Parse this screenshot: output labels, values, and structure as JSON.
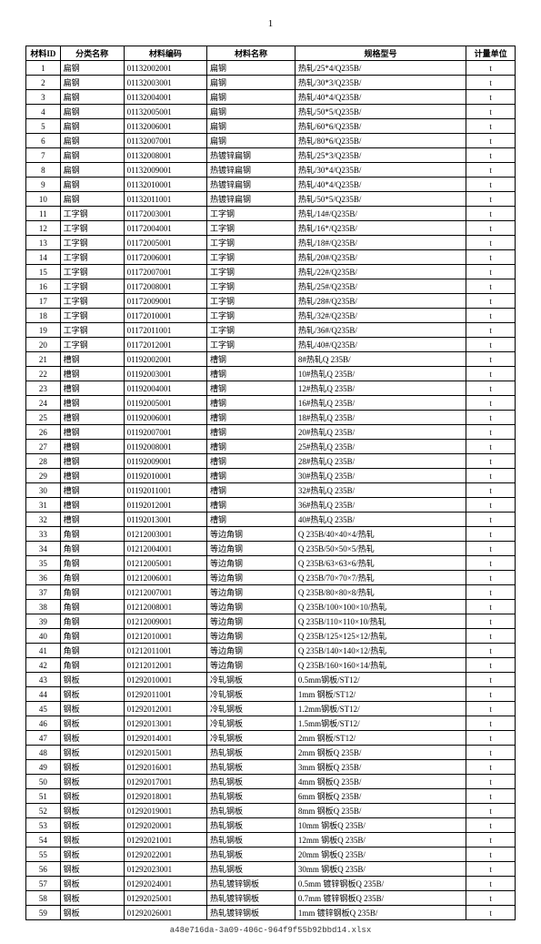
{
  "page_number": "1",
  "footer": "a48e716da-3a09-406c-964f9f55b92bbd14.xlsx",
  "columns": [
    "材料ID",
    "分类名称",
    "材料编码",
    "材料名称",
    "规格型号",
    "计量单位"
  ],
  "rows": [
    [
      "1",
      "扁钢",
      "01132002001",
      "扁钢",
      "热轧/25*4/Q235B/",
      "t"
    ],
    [
      "2",
      "扁钢",
      "01132003001",
      "扁钢",
      "热轧/30*3/Q235B/",
      "t"
    ],
    [
      "3",
      "扁钢",
      "01132004001",
      "扁钢",
      "热轧/40*4/Q235B/",
      "t"
    ],
    [
      "4",
      "扁钢",
      "01132005001",
      "扁钢",
      "热轧/50*5/Q235B/",
      "t"
    ],
    [
      "5",
      "扁钢",
      "01132006001",
      "扁钢",
      "热轧/60*6/Q235B/",
      "t"
    ],
    [
      "6",
      "扁钢",
      "01132007001",
      "扁钢",
      "热轧/80*6/Q235B/",
      "t"
    ],
    [
      "7",
      "扁钢",
      "01132008001",
      "热镀锌扁钢",
      "热轧/25*3/Q235B/",
      "t"
    ],
    [
      "8",
      "扁钢",
      "01132009001",
      "热镀锌扁钢",
      "热轧/30*4/Q235B/",
      "t"
    ],
    [
      "9",
      "扁钢",
      "01132010001",
      "热镀锌扁钢",
      "热轧/40*4/Q235B/",
      "t"
    ],
    [
      "10",
      "扁钢",
      "01132011001",
      "热镀锌扁钢",
      "热轧/50*5/Q235B/",
      "t"
    ],
    [
      "11",
      "工字钢",
      "01172003001",
      "工字钢",
      "热轧/14#/Q235B/",
      "t"
    ],
    [
      "12",
      "工字钢",
      "01172004001",
      "工字钢",
      "热轧/16*/Q235B/",
      "t"
    ],
    [
      "13",
      "工字钢",
      "01172005001",
      "工字钢",
      "热轧/18#/Q235B/",
      "t"
    ],
    [
      "14",
      "工字钢",
      "01172006001",
      "工字钢",
      "热轧/20#/Q235B/",
      "t"
    ],
    [
      "15",
      "工字钢",
      "01172007001",
      "工字钢",
      "热轧/22#/Q235B/",
      "t"
    ],
    [
      "16",
      "工字钢",
      "01172008001",
      "工字钢",
      "热轧/25#/Q235B/",
      "t"
    ],
    [
      "17",
      "工字钢",
      "01172009001",
      "工字钢",
      "热轧/28#/Q235B/",
      "t"
    ],
    [
      "18",
      "工字钢",
      "01172010001",
      "工字钢",
      "热轧/32#/Q235B/",
      "t"
    ],
    [
      "19",
      "工字钢",
      "01172011001",
      "工字钢",
      "热轧/36#/Q235B/",
      "t"
    ],
    [
      "20",
      "工字钢",
      "01172012001",
      "工字钢",
      "热轧/40#/Q235B/",
      "t"
    ],
    [
      "21",
      "槽钢",
      "01192002001",
      "槽钢",
      "8#热轧Q 235B/",
      "t"
    ],
    [
      "22",
      "槽钢",
      "01192003001",
      "槽钢",
      "10#热轧Q 235B/",
      "t"
    ],
    [
      "23",
      "槽钢",
      "01192004001",
      "槽钢",
      "12#热轧Q 235B/",
      "t"
    ],
    [
      "24",
      "槽钢",
      "01192005001",
      "槽钢",
      "16#热轧Q 235B/",
      "t"
    ],
    [
      "25",
      "槽钢",
      "01192006001",
      "槽钢",
      "18#热轧Q 235B/",
      "t"
    ],
    [
      "26",
      "槽钢",
      "01192007001",
      "槽钢",
      "20#热轧Q 235B/",
      "t"
    ],
    [
      "27",
      "槽钢",
      "01192008001",
      "槽钢",
      "25#热轧Q 235B/",
      "t"
    ],
    [
      "28",
      "槽钢",
      "01192009001",
      "槽钢",
      "28#热轧Q 235B/",
      "t"
    ],
    [
      "29",
      "槽钢",
      "01192010001",
      "槽钢",
      "30#热轧Q 235B/",
      "t"
    ],
    [
      "30",
      "槽钢",
      "01192011001",
      "槽钢",
      "32#热轧Q 235B/",
      "t"
    ],
    [
      "31",
      "槽钢",
      "01192012001",
      "槽钢",
      "36#热轧Q 235B/",
      "t"
    ],
    [
      "32",
      "槽钢",
      "01192013001",
      "槽钢",
      "40#热轧Q 235B/",
      "t"
    ],
    [
      "33",
      "角钢",
      "01212003001",
      "等边角钢",
      "Q 235B/40×40×4/热轧",
      "t"
    ],
    [
      "34",
      "角钢",
      "01212004001",
      "等边角钢",
      "Q 235B/50×50×5/热轧",
      "t"
    ],
    [
      "35",
      "角钢",
      "01212005001",
      "等边角钢",
      "Q 235B/63×63×6/热轧",
      "t"
    ],
    [
      "36",
      "角钢",
      "01212006001",
      "等边角钢",
      "Q 235B/70×70×7/热轧",
      "t"
    ],
    [
      "37",
      "角钢",
      "01212007001",
      "等边角钢",
      "Q 235B/80×80×8/热轧",
      "t"
    ],
    [
      "38",
      "角钢",
      "01212008001",
      "等边角钢",
      "Q 235B/100×100×10/热轧",
      "t"
    ],
    [
      "39",
      "角钢",
      "01212009001",
      "等边角钢",
      "Q 235B/110×110×10/热轧",
      "t"
    ],
    [
      "40",
      "角钢",
      "01212010001",
      "等边角钢",
      "Q 235B/125×125×12/热轧",
      "t"
    ],
    [
      "41",
      "角钢",
      "01212011001",
      "等边角钢",
      "Q 235B/140×140×12/热轧",
      "t"
    ],
    [
      "42",
      "角钢",
      "01212012001",
      "等边角钢",
      "Q 235B/160×160×14/热轧",
      "t"
    ],
    [
      "43",
      "钢板",
      "01292010001",
      "冷轧钢板",
      "0.5mm钢板/ST12/",
      "t"
    ],
    [
      "44",
      "钢板",
      "01292011001",
      "冷轧钢板",
      "1mm 钢板/ST12/",
      "t"
    ],
    [
      "45",
      "钢板",
      "01292012001",
      "冷轧钢板",
      "1.2mm钢板/ST12/",
      "t"
    ],
    [
      "46",
      "钢板",
      "01292013001",
      "冷轧钢板",
      "1.5mm钢板/ST12/",
      "t"
    ],
    [
      "47",
      "钢板",
      "01292014001",
      "冷轧钢板",
      "2mm 钢板/ST12/",
      "t"
    ],
    [
      "48",
      "钢板",
      "01292015001",
      "热轧钢板",
      "2mm 钢板Q 235B/",
      "t"
    ],
    [
      "49",
      "钢板",
      "01292016001",
      "热轧钢板",
      "3mm 钢板Q 235B/",
      "t"
    ],
    [
      "50",
      "钢板",
      "01292017001",
      "热轧钢板",
      "4mm 钢板Q 235B/",
      "t"
    ],
    [
      "51",
      "钢板",
      "01292018001",
      "热轧钢板",
      "6mm 钢板Q 235B/",
      "t"
    ],
    [
      "52",
      "钢板",
      "01292019001",
      "热轧钢板",
      "8mm 钢板Q 235B/",
      "t"
    ],
    [
      "53",
      "钢板",
      "01292020001",
      "热轧钢板",
      "10mm 钢板Q 235B/",
      "t"
    ],
    [
      "54",
      "钢板",
      "01292021001",
      "热轧钢板",
      "12mm 钢板Q 235B/",
      "t"
    ],
    [
      "55",
      "钢板",
      "01292022001",
      "热轧钢板",
      "20mm 钢板Q 235B/",
      "t"
    ],
    [
      "56",
      "钢板",
      "01292023001",
      "热轧钢板",
      "30mm 钢板Q 235B/",
      "t"
    ],
    [
      "57",
      "钢板",
      "01292024001",
      "热轧镀锌钢板",
      "0.5mm 镀锌钢板Q 235B/",
      "t"
    ],
    [
      "58",
      "钢板",
      "01292025001",
      "热轧镀锌钢板",
      "0.7mm 镀锌钢板Q 235B/",
      "t"
    ],
    [
      "59",
      "钢板",
      "01292026001",
      "热轧镀锌钢板",
      "1mm 镀锌钢板Q 235B/",
      "t"
    ]
  ]
}
